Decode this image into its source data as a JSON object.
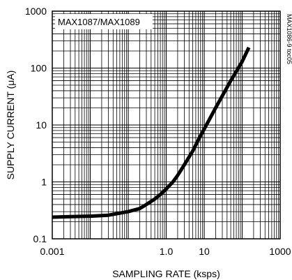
{
  "chart_data": {
    "type": "line",
    "title": "MAX1087/MAX1089",
    "side_label": "MAX1086-9 toc05",
    "xlabel": "SAMPLING RATE (ksps)",
    "ylabel": "SUPPLY CURRENT (μA)",
    "x_scale": "log",
    "y_scale": "log",
    "xlim": [
      0.001,
      1000
    ],
    "ylim": [
      0.1,
      1000
    ],
    "x_ticks": [
      {
        "value": 0.001,
        "label": "0.001"
      },
      {
        "value": 1,
        "label": "1.0"
      },
      {
        "value": 10,
        "label": "10"
      },
      {
        "value": 1000,
        "label": "1000"
      }
    ],
    "y_ticks": [
      {
        "value": 0.1,
        "label": "0.1"
      },
      {
        "value": 1,
        "label": "1"
      },
      {
        "value": 10,
        "label": "10"
      },
      {
        "value": 100,
        "label": "100"
      },
      {
        "value": 1000,
        "label": "1000"
      }
    ],
    "grid": true,
    "series": [
      {
        "x": [
          0.001,
          0.003,
          0.01,
          0.03,
          0.1,
          0.2,
          0.3,
          0.5,
          0.7,
          1.0,
          1.5,
          2,
          3,
          5,
          7,
          10,
          20,
          50,
          100,
          150
        ],
        "y": [
          0.24,
          0.245,
          0.25,
          0.26,
          0.3,
          0.34,
          0.4,
          0.5,
          0.6,
          0.75,
          1.0,
          1.3,
          2.0,
          3.5,
          5.5,
          8.5,
          20,
          60,
          130,
          230
        ],
        "color": "#000000"
      }
    ]
  }
}
